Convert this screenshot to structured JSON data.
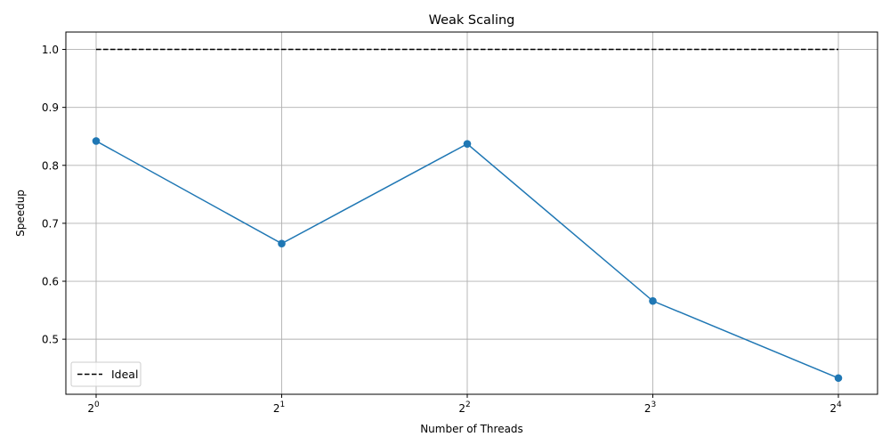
{
  "chart_data": {
    "type": "line",
    "title": "Weak Scaling",
    "xlabel": "Number of Threads",
    "ylabel": "Speedup",
    "x_scale": "log2",
    "x": [
      1,
      2,
      4,
      8,
      16
    ],
    "x_tick_labels": [
      {
        "base": "2",
        "exp": "0"
      },
      {
        "base": "2",
        "exp": "1"
      },
      {
        "base": "2",
        "exp": "2"
      },
      {
        "base": "2",
        "exp": "3"
      },
      {
        "base": "2",
        "exp": "4"
      }
    ],
    "y_ticks": [
      "0.5",
      "0.6",
      "0.7",
      "0.8",
      "0.9",
      "1.0"
    ],
    "ylim": [
      0.405,
      1.03
    ],
    "grid": true,
    "legend": {
      "placement": "lower-left",
      "entries": [
        "Ideal"
      ]
    },
    "series": [
      {
        "values": [
          0.842,
          0.665,
          0.837,
          0.566,
          0.433
        ],
        "color": "#1f77b4",
        "style": "solid",
        "marker": "circle"
      },
      {
        "name": "Ideal",
        "values": [
          1.0,
          1.0,
          1.0,
          1.0,
          1.0
        ],
        "color": "#000000",
        "style": "dashed",
        "marker": "none"
      }
    ]
  }
}
